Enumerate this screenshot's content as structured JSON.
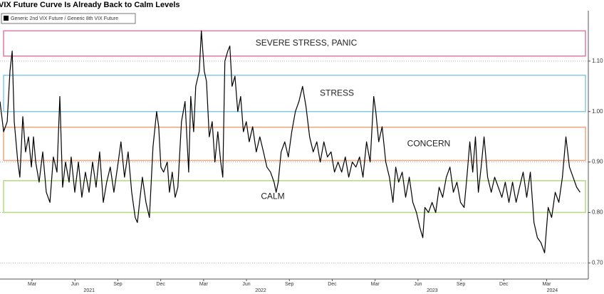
{
  "chart_data": {
    "type": "line",
    "title": "VIX Future Curve Is Already Back to Calm Levels",
    "series": [
      {
        "name": "Generic 2nd VIX Future / Generic 8th VIX Future",
        "color": "#000000",
        "x": [
          2020.98,
          2021.001,
          2021.022,
          2021.038,
          2021.051,
          2021.063,
          2021.084,
          2021.096,
          2021.113,
          2021.129,
          2021.146,
          2021.163,
          2021.175,
          2021.188,
          2021.208,
          2021.229,
          2021.25,
          2021.271,
          2021.291,
          2021.312,
          2021.329,
          2021.345,
          2021.362,
          2021.383,
          2021.395,
          2021.416,
          2021.437,
          2021.457,
          2021.478,
          2021.499,
          2021.52,
          2021.54,
          2021.561,
          2021.582,
          2021.602,
          2021.623,
          2021.644,
          2021.665,
          2021.685,
          2021.706,
          2021.727,
          2021.748,
          2021.768,
          2021.781,
          2021.797,
          2021.81,
          2021.831,
          2021.851,
          2021.872,
          2021.893,
          2021.905,
          2021.918,
          2021.934,
          2021.955,
          2021.968,
          2021.984,
          2022.001,
          2022.017,
          2022.038,
          2022.059,
          2022.08,
          2022.092,
          2022.109,
          2022.121,
          2022.142,
          2022.154,
          2022.171,
          2022.184,
          2022.2,
          2022.217,
          2022.233,
          2022.25,
          2022.267,
          2022.279,
          2022.291,
          2022.308,
          2022.32,
          2022.333,
          2022.35,
          2022.366,
          2022.383,
          2022.399,
          2022.416,
          2022.433,
          2022.453,
          2022.474,
          2022.495,
          2022.516,
          2022.536,
          2022.557,
          2022.578,
          2022.59,
          2022.602,
          2022.619,
          2022.64,
          2022.661,
          2022.681,
          2022.702,
          2022.723,
          2022.744,
          2022.764,
          2022.785,
          2022.806,
          2022.827,
          2022.847,
          2022.868,
          2022.889,
          2022.91,
          2022.93,
          2022.951,
          2022.972,
          2022.993,
          2023.013,
          2023.034,
          2023.055,
          2023.076,
          2023.096,
          2023.117,
          2023.138,
          2023.159,
          2023.171,
          2023.188,
          2023.208,
          2023.229,
          2023.25,
          2023.271,
          2023.287,
          2023.304,
          2023.325,
          2023.345,
          2023.366,
          2023.387,
          2023.408,
          2023.428,
          2023.445,
          2023.457,
          2023.478,
          2023.499,
          2023.52,
          2023.54,
          2023.561,
          2023.582,
          2023.603,
          2023.623,
          2023.644,
          2023.665,
          2023.686,
          2023.702,
          2023.719,
          2023.736,
          2023.752,
          2023.769,
          2023.785,
          2023.802,
          2023.823,
          2023.844,
          2023.864,
          2023.885,
          2023.906,
          2023.926,
          2023.947,
          2023.968,
          2023.989,
          2024.009,
          2024.03,
          2024.051,
          2024.072,
          2024.093,
          2024.113,
          2024.134,
          2024.155,
          2024.176,
          2024.196,
          2024.217,
          2024.238,
          2024.259,
          2024.279,
          2024.3,
          2024.321,
          2024.342,
          2024.362
        ],
        "values": [
          1.02,
          0.96,
          0.98,
          1.08,
          1.12,
          0.98,
          0.9,
          0.87,
          0.99,
          0.92,
          0.95,
          0.89,
          0.95,
          0.9,
          0.86,
          0.92,
          0.84,
          0.82,
          0.91,
          0.88,
          1.03,
          0.85,
          0.9,
          0.86,
          0.91,
          0.84,
          0.9,
          0.83,
          0.88,
          0.84,
          0.9,
          0.85,
          0.92,
          0.82,
          0.86,
          0.89,
          0.84,
          0.89,
          0.94,
          0.87,
          0.92,
          0.84,
          0.79,
          0.78,
          0.83,
          0.87,
          0.82,
          0.79,
          0.93,
          1.0,
          0.97,
          0.89,
          0.88,
          0.9,
          0.84,
          0.88,
          0.83,
          0.85,
          0.98,
          1.02,
          0.88,
          1.03,
          0.96,
          1.05,
          1.08,
          1.16,
          1.08,
          1.06,
          0.95,
          0.98,
          0.9,
          0.96,
          0.9,
          0.87,
          1.1,
          1.12,
          1.13,
          1.05,
          1.07,
          1.0,
          1.03,
          0.96,
          0.98,
          0.94,
          0.97,
          0.92,
          0.95,
          0.92,
          0.89,
          0.88,
          0.86,
          0.84,
          0.86,
          0.92,
          0.94,
          0.91,
          0.96,
          1.0,
          1.02,
          1.05,
          1.01,
          0.95,
          0.92,
          0.94,
          0.9,
          0.94,
          0.91,
          0.92,
          0.88,
          0.9,
          0.88,
          0.91,
          0.87,
          0.9,
          0.89,
          0.91,
          0.87,
          0.94,
          0.9,
          1.03,
          1.0,
          0.94,
          0.97,
          0.9,
          0.87,
          0.82,
          0.89,
          0.86,
          0.88,
          0.83,
          0.87,
          0.82,
          0.8,
          0.77,
          0.75,
          0.81,
          0.8,
          0.82,
          0.8,
          0.85,
          0.83,
          0.87,
          0.89,
          0.84,
          0.86,
          0.82,
          0.81,
          0.87,
          0.94,
          0.88,
          0.95,
          0.84,
          0.89,
          0.95,
          0.87,
          0.84,
          0.87,
          0.85,
          0.83,
          0.86,
          0.82,
          0.86,
          0.82,
          0.85,
          0.88,
          0.83,
          0.88,
          0.78,
          0.75,
          0.74,
          0.72,
          0.81,
          0.79,
          0.84,
          0.82,
          0.87,
          0.95,
          0.89,
          0.87,
          0.85,
          0.84
        ]
      }
    ],
    "xlim": [
      2020.98,
      2024.41
    ],
    "xticks": [
      {
        "value": 2021.167,
        "label": "Mar"
      },
      {
        "value": 2021.417,
        "label": "Jun"
      },
      {
        "value": 2021.667,
        "label": "Sep"
      },
      {
        "value": 2021.917,
        "label": "Dec"
      },
      {
        "value": 2022.167,
        "label": "Mar"
      },
      {
        "value": 2022.417,
        "label": "Jun"
      },
      {
        "value": 2022.667,
        "label": "Sep"
      },
      {
        "value": 2022.917,
        "label": "Dec"
      },
      {
        "value": 2023.167,
        "label": "Mar"
      },
      {
        "value": 2023.417,
        "label": "Jun"
      },
      {
        "value": 2023.667,
        "label": "Sep"
      },
      {
        "value": 2023.917,
        "label": "Dec"
      },
      {
        "value": 2024.167,
        "label": "Mar"
      }
    ],
    "year_ticks": [
      {
        "value": 2021.5,
        "label": "2021"
      },
      {
        "value": 2022.5,
        "label": "2022"
      },
      {
        "value": 2023.5,
        "label": "2023"
      },
      {
        "value": 2024.2,
        "label": "2024"
      }
    ],
    "ylim": [
      0.668,
      1.2
    ],
    "yticks": [
      {
        "value": 0.7,
        "label": "0.70"
      },
      {
        "value": 0.8,
        "label": "0.80"
      },
      {
        "value": 0.9,
        "label": "0.90"
      },
      {
        "value": 1.0,
        "label": "1.00"
      },
      {
        "value": 1.1,
        "label": "1.10"
      }
    ],
    "grid": true,
    "zones": [
      {
        "label": "SEVERE STRESS, PANIC",
        "lower": 1.11,
        "upper": 1.16,
        "color": "#e07aa6"
      },
      {
        "label": "STRESS",
        "lower": 1.0,
        "upper": 1.072,
        "color": "#86c9e6"
      },
      {
        "label": "CONCERN",
        "lower": 0.903,
        "upper": 0.969,
        "color": "#f0a57a"
      },
      {
        "label": "CALM",
        "lower": 0.8,
        "upper": 0.863,
        "color": "#b3db7a"
      }
    ]
  }
}
